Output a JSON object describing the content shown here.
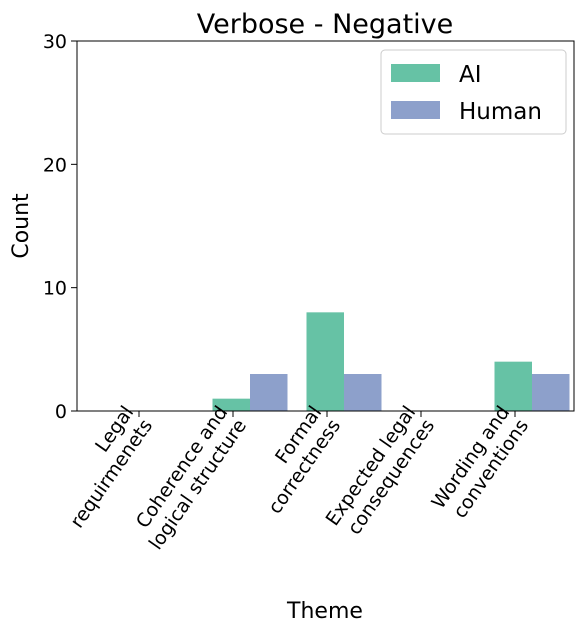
{
  "chart_data": {
    "type": "bar",
    "title": "Verbose - Negative",
    "xlabel": "Theme",
    "ylabel": "Count",
    "ylim": [
      0,
      30
    ],
    "yticks": [
      0,
      10,
      20,
      30
    ],
    "categories": [
      [
        "Legal",
        "requirmenets"
      ],
      [
        "Coherence and",
        "logical structure"
      ],
      [
        "Formal",
        "correctness"
      ],
      [
        "Expected legal",
        "consequences"
      ],
      [
        "Wording and",
        "conventions"
      ]
    ],
    "series": [
      {
        "name": "AI",
        "color": "#66c2a5",
        "values": [
          0,
          1,
          8,
          0,
          4
        ]
      },
      {
        "name": "Human",
        "color": "#8da0cb",
        "values": [
          0,
          3,
          3,
          0,
          3
        ]
      }
    ],
    "legend_position": "top-right",
    "grid": false
  }
}
